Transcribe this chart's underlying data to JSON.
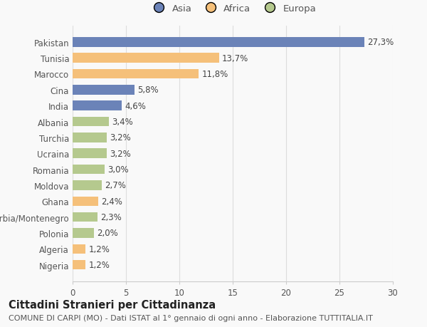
{
  "categories": [
    "Nigeria",
    "Algeria",
    "Polonia",
    "Serbia/Montenegro",
    "Ghana",
    "Moldova",
    "Romania",
    "Ucraina",
    "Turchia",
    "Albania",
    "India",
    "Cina",
    "Marocco",
    "Tunisia",
    "Pakistan"
  ],
  "values": [
    1.2,
    1.2,
    2.0,
    2.3,
    2.4,
    2.7,
    3.0,
    3.2,
    3.2,
    3.4,
    4.6,
    5.8,
    11.8,
    13.7,
    27.3
  ],
  "labels": [
    "1,2%",
    "1,2%",
    "2,0%",
    "2,3%",
    "2,4%",
    "2,7%",
    "3,0%",
    "3,2%",
    "3,2%",
    "3,4%",
    "4,6%",
    "5,8%",
    "11,8%",
    "13,7%",
    "27,3%"
  ],
  "colors": [
    "#f5c07a",
    "#f5c07a",
    "#b5c98e",
    "#b5c98e",
    "#f5c07a",
    "#b5c98e",
    "#b5c98e",
    "#b5c98e",
    "#b5c98e",
    "#b5c98e",
    "#6b83b8",
    "#6b83b8",
    "#f5c07a",
    "#f5c07a",
    "#6b83b8"
  ],
  "legend_labels": [
    "Asia",
    "Africa",
    "Europa"
  ],
  "legend_colors": [
    "#6b83b8",
    "#f5c07a",
    "#b5c98e"
  ],
  "title": "Cittadini Stranieri per Cittadinanza",
  "subtitle": "COMUNE DI CARPI (MO) - Dati ISTAT al 1° gennaio di ogni anno - Elaborazione TUTTITALIA.IT",
  "xlim": [
    0,
    30
  ],
  "xticks": [
    0,
    5,
    10,
    15,
    20,
    25,
    30
  ],
  "bar_height": 0.6,
  "background_color": "#f9f9f9",
  "label_fontsize": 8.5,
  "tick_fontsize": 8.5,
  "title_fontsize": 10.5,
  "subtitle_fontsize": 8
}
